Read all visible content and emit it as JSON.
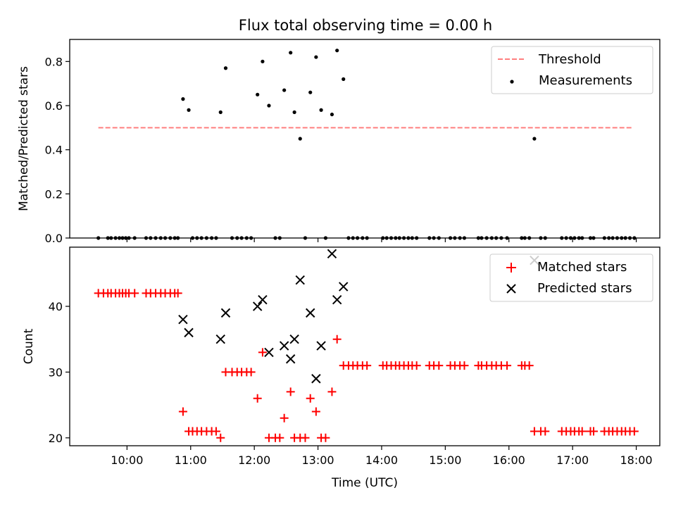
{
  "chart_data": {
    "type": "scatter",
    "title": "Flux total observing time = 0.00 h",
    "xlabel": "Time (UTC)",
    "x_tick_labels": [
      "10:00",
      "11:00",
      "12:00",
      "13:00",
      "14:00",
      "15:00",
      "16:00",
      "17:00",
      "18:00"
    ],
    "x_tick_hours": [
      10,
      11,
      12,
      13,
      14,
      15,
      16,
      17,
      18
    ],
    "xlim_hours": [
      9.1,
      18.37
    ],
    "panels": [
      {
        "id": "ratio",
        "ylabel": "Matched/Predicted stars",
        "ylim": [
          0,
          0.9
        ],
        "y_ticks": [
          0.0,
          0.2,
          0.4,
          0.6,
          0.8
        ],
        "y_tick_labels": [
          "0.0",
          "0.2",
          "0.4",
          "0.6",
          "0.8"
        ],
        "legend": {
          "placement": "top-right",
          "entries": [
            "Threshold",
            "Measurements"
          ]
        },
        "threshold": {
          "name": "Threshold",
          "value": 0.5,
          "x_range_hours": [
            9.55,
            17.93
          ],
          "color": "#ff7f7f",
          "style": "dashed"
        },
        "series": [
          {
            "name": "Measurements",
            "marker": "dot",
            "color": "#000000",
            "x_hours": [
              9.55,
              9.7,
              9.75,
              9.82,
              9.88,
              9.93,
              9.98,
              10.03,
              10.12,
              10.3,
              10.37,
              10.45,
              10.53,
              10.6,
              10.68,
              10.75,
              10.8,
              10.88,
              10.97,
              11.03,
              11.1,
              11.17,
              11.25,
              11.33,
              11.4,
              11.47,
              11.55,
              11.65,
              11.73,
              11.8,
              11.88,
              11.95,
              12.05,
              12.13,
              12.23,
              12.33,
              12.4,
              12.47,
              12.57,
              12.63,
              12.72,
              12.8,
              12.88,
              12.97,
              13.05,
              13.12,
              13.22,
              13.3,
              13.4,
              13.48,
              13.55,
              13.62,
              13.7,
              13.77,
              14.02,
              14.08,
              14.15,
              14.22,
              14.28,
              14.35,
              14.42,
              14.48,
              14.55,
              14.75,
              14.82,
              14.9,
              15.08,
              15.15,
              15.23,
              15.3,
              15.52,
              15.57,
              15.65,
              15.73,
              15.8,
              15.88,
              15.97,
              16.2,
              16.25,
              16.32,
              16.4,
              16.5,
              16.57,
              16.83,
              16.9,
              16.97,
              17.03,
              17.1,
              17.15,
              17.28,
              17.33,
              17.5,
              17.57,
              17.63,
              17.7,
              17.77,
              17.83,
              17.9,
              17.97
            ],
            "y": [
              0,
              0,
              0,
              0,
              0,
              0,
              0,
              0,
              0,
              0,
              0,
              0,
              0,
              0,
              0,
              0,
              0,
              0.63,
              0.58,
              0,
              0,
              0,
              0,
              0,
              0,
              0.57,
              0.77,
              0,
              0,
              0,
              0,
              0,
              0.65,
              0.8,
              0.6,
              0,
              0,
              0.67,
              0.84,
              0.57,
              0.45,
              0,
              0.66,
              0.82,
              0.58,
              0,
              0.56,
              0.85,
              0.72,
              0,
              0,
              0,
              0,
              0,
              0,
              0,
              0,
              0,
              0,
              0,
              0,
              0,
              0,
              0,
              0,
              0,
              0,
              0,
              0,
              0,
              0,
              0,
              0,
              0,
              0,
              0,
              0,
              0,
              0,
              0,
              0.45,
              0,
              0,
              0,
              0,
              0,
              0,
              0,
              0,
              0,
              0,
              0,
              0,
              0,
              0,
              0,
              0,
              0,
              0
            ]
          }
        ]
      },
      {
        "id": "count",
        "ylabel": "Count",
        "ylim": [
          18.8,
          49.0
        ],
        "y_ticks": [
          20,
          30,
          40
        ],
        "y_tick_labels": [
          "20",
          "30",
          "40"
        ],
        "legend": {
          "placement": "top-right",
          "entries": [
            "Matched stars",
            "Predicted stars"
          ]
        },
        "series": [
          {
            "name": "Matched stars",
            "marker": "plus",
            "color": "#ff0000",
            "x_hours": [
              9.55,
              9.63,
              9.7,
              9.75,
              9.82,
              9.88,
              9.93,
              9.98,
              10.03,
              10.12,
              10.3,
              10.37,
              10.45,
              10.53,
              10.6,
              10.68,
              10.75,
              10.8,
              10.88,
              10.97,
              11.03,
              11.1,
              11.17,
              11.25,
              11.33,
              11.4,
              11.47,
              11.55,
              11.65,
              11.73,
              11.8,
              11.88,
              11.95,
              12.05,
              12.13,
              12.23,
              12.33,
              12.4,
              12.47,
              12.57,
              12.63,
              12.72,
              12.8,
              12.88,
              12.97,
              13.05,
              13.12,
              13.22,
              13.3,
              13.4,
              13.48,
              13.55,
              13.62,
              13.7,
              13.77,
              14.02,
              14.08,
              14.15,
              14.22,
              14.28,
              14.35,
              14.42,
              14.48,
              14.55,
              14.75,
              14.82,
              14.9,
              15.08,
              15.15,
              15.23,
              15.3,
              15.52,
              15.57,
              15.65,
              15.73,
              15.8,
              15.88,
              15.97,
              16.2,
              16.25,
              16.32,
              16.4,
              16.5,
              16.57,
              16.83,
              16.9,
              16.97,
              17.03,
              17.1,
              17.15,
              17.28,
              17.33,
              17.5,
              17.57,
              17.63,
              17.7,
              17.77,
              17.83,
              17.9,
              17.97
            ],
            "y": [
              42,
              42,
              42,
              42,
              42,
              42,
              42,
              42,
              42,
              42,
              42,
              42,
              42,
              42,
              42,
              42,
              42,
              42,
              24,
              21,
              21,
              21,
              21,
              21,
              21,
              21,
              20,
              30,
              30,
              30,
              30,
              30,
              30,
              26,
              33,
              20,
              20,
              20,
              23,
              27,
              20,
              20,
              20,
              26,
              24,
              20,
              20,
              27,
              35,
              31,
              31,
              31,
              31,
              31,
              31,
              31,
              31,
              31,
              31,
              31,
              31,
              31,
              31,
              31,
              31,
              31,
              31,
              31,
              31,
              31,
              31,
              31,
              31,
              31,
              31,
              31,
              31,
              31,
              31,
              31,
              31,
              21,
              21,
              21,
              21,
              21,
              21,
              21,
              21,
              21,
              21,
              21,
              21,
              21,
              21,
              21,
              21,
              21,
              21,
              21
            ]
          },
          {
            "name": "Predicted stars",
            "marker": "x",
            "color": "#000000",
            "x_hours": [
              10.88,
              10.97,
              11.47,
              11.55,
              12.05,
              12.13,
              12.23,
              12.47,
              12.57,
              12.63,
              12.72,
              12.88,
              12.97,
              13.05,
              13.22,
              13.3,
              13.4,
              16.4
            ],
            "y": [
              38,
              36,
              35,
              39,
              40,
              41,
              33,
              34,
              32,
              35,
              44,
              39,
              29,
              34,
              48,
              41,
              43,
              47
            ]
          }
        ]
      }
    ]
  }
}
